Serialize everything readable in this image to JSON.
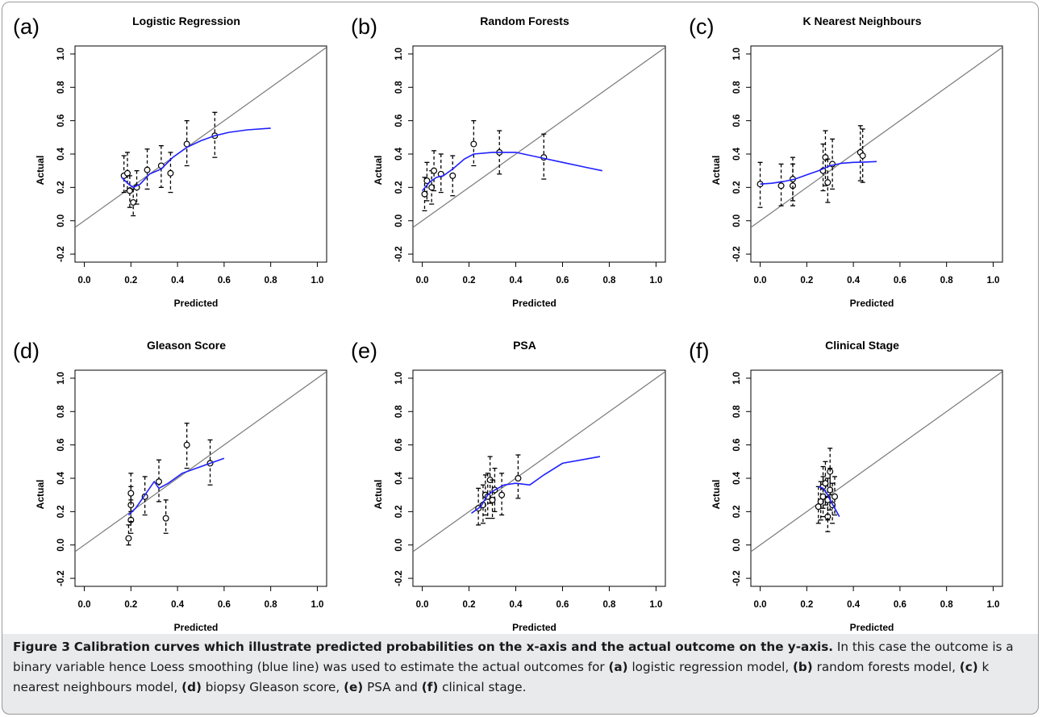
{
  "axis_label_x": "Predicted",
  "axis_label_y": "Actual",
  "x_ticks": [
    "0.0",
    "0.2",
    "0.4",
    "0.6",
    "0.8",
    "1.0"
  ],
  "y_ticks": [
    "-0.2",
    "0.0",
    "0.2",
    "0.4",
    "0.6",
    "0.8",
    "1.0"
  ],
  "colors": {
    "loess": "#1f1fff",
    "reference": "#7a7a7a",
    "points": "#000000",
    "caption_bg": "#e8eaec"
  },
  "chart_data": [
    {
      "panel": "(a)",
      "type": "scatter",
      "title": "Logistic Regression",
      "xlabel": "Predicted",
      "ylabel": "Actual",
      "xlim": [
        0,
        1
      ],
      "ylim": [
        -0.2,
        1
      ],
      "reference_line": {
        "intercept": 0,
        "slope": 1
      },
      "points": [
        {
          "x": 0.17,
          "y": 0.27,
          "lo": 0.17,
          "hi": 0.39
        },
        {
          "x": 0.185,
          "y": 0.285,
          "lo": 0.18,
          "hi": 0.41
        },
        {
          "x": 0.195,
          "y": 0.18,
          "lo": 0.08,
          "hi": 0.27
        },
        {
          "x": 0.21,
          "y": 0.11,
          "lo": 0.03,
          "hi": 0.19
        },
        {
          "x": 0.225,
          "y": 0.2,
          "lo": 0.1,
          "hi": 0.3
        },
        {
          "x": 0.27,
          "y": 0.305,
          "lo": 0.19,
          "hi": 0.43
        },
        {
          "x": 0.33,
          "y": 0.33,
          "lo": 0.2,
          "hi": 0.45
        },
        {
          "x": 0.37,
          "y": 0.285,
          "lo": 0.17,
          "hi": 0.41
        },
        {
          "x": 0.44,
          "y": 0.46,
          "lo": 0.33,
          "hi": 0.6
        },
        {
          "x": 0.56,
          "y": 0.51,
          "lo": 0.38,
          "hi": 0.65
        }
      ],
      "loess": [
        [
          0.16,
          0.26
        ],
        [
          0.19,
          0.22
        ],
        [
          0.21,
          0.2
        ],
        [
          0.24,
          0.22
        ],
        [
          0.28,
          0.28
        ],
        [
          0.33,
          0.31
        ],
        [
          0.38,
          0.38
        ],
        [
          0.44,
          0.44
        ],
        [
          0.5,
          0.48
        ],
        [
          0.56,
          0.51
        ],
        [
          0.62,
          0.53
        ],
        [
          0.7,
          0.545
        ],
        [
          0.8,
          0.555
        ]
      ]
    },
    {
      "panel": "(b)",
      "type": "scatter",
      "title": "Random Forests",
      "xlabel": "Predicted",
      "ylabel": "Actual",
      "xlim": [
        0,
        1
      ],
      "ylim": [
        -0.2,
        1
      ],
      "reference_line": {
        "intercept": 0,
        "slope": 1
      },
      "points": [
        {
          "x": 0.01,
          "y": 0.16,
          "lo": 0.06,
          "hi": 0.26
        },
        {
          "x": 0.02,
          "y": 0.24,
          "lo": 0.12,
          "hi": 0.35
        },
        {
          "x": 0.04,
          "y": 0.2,
          "lo": 0.1,
          "hi": 0.3
        },
        {
          "x": 0.05,
          "y": 0.3,
          "lo": 0.18,
          "hi": 0.42
        },
        {
          "x": 0.08,
          "y": 0.28,
          "lo": 0.17,
          "hi": 0.4
        },
        {
          "x": 0.13,
          "y": 0.27,
          "lo": 0.15,
          "hi": 0.39
        },
        {
          "x": 0.22,
          "y": 0.46,
          "lo": 0.33,
          "hi": 0.6
        },
        {
          "x": 0.33,
          "y": 0.41,
          "lo": 0.28,
          "hi": 0.54
        },
        {
          "x": 0.52,
          "y": 0.38,
          "lo": 0.25,
          "hi": 0.52
        }
      ],
      "loess": [
        [
          0.0,
          0.18
        ],
        [
          0.03,
          0.23
        ],
        [
          0.06,
          0.26
        ],
        [
          0.09,
          0.27
        ],
        [
          0.13,
          0.31
        ],
        [
          0.18,
          0.37
        ],
        [
          0.22,
          0.4
        ],
        [
          0.3,
          0.41
        ],
        [
          0.4,
          0.41
        ],
        [
          0.5,
          0.38
        ],
        [
          0.6,
          0.35
        ],
        [
          0.7,
          0.32
        ],
        [
          0.77,
          0.3
        ]
      ]
    },
    {
      "panel": "(c)",
      "type": "scatter",
      "title": "K Nearest Neighbours",
      "xlabel": "Predicted",
      "ylabel": "Actual",
      "xlim": [
        0,
        1
      ],
      "ylim": [
        -0.2,
        1
      ],
      "reference_line": {
        "intercept": 0,
        "slope": 1
      },
      "points": [
        {
          "x": 0.0,
          "y": 0.22,
          "lo": 0.08,
          "hi": 0.35
        },
        {
          "x": 0.09,
          "y": 0.21,
          "lo": 0.09,
          "hi": 0.34
        },
        {
          "x": 0.14,
          "y": 0.21,
          "lo": 0.09,
          "hi": 0.34
        },
        {
          "x": 0.14,
          "y": 0.25,
          "lo": 0.12,
          "hi": 0.38
        },
        {
          "x": 0.27,
          "y": 0.3,
          "lo": 0.18,
          "hi": 0.46
        },
        {
          "x": 0.28,
          "y": 0.38,
          "lo": 0.21,
          "hi": 0.54
        },
        {
          "x": 0.29,
          "y": 0.23,
          "lo": 0.11,
          "hi": 0.37
        },
        {
          "x": 0.31,
          "y": 0.34,
          "lo": 0.19,
          "hi": 0.49
        },
        {
          "x": 0.43,
          "y": 0.41,
          "lo": 0.24,
          "hi": 0.57
        },
        {
          "x": 0.44,
          "y": 0.39,
          "lo": 0.23,
          "hi": 0.55
        }
      ],
      "loess": [
        [
          0.0,
          0.22
        ],
        [
          0.05,
          0.225
        ],
        [
          0.1,
          0.235
        ],
        [
          0.15,
          0.25
        ],
        [
          0.2,
          0.275
        ],
        [
          0.25,
          0.3
        ],
        [
          0.3,
          0.33
        ],
        [
          0.35,
          0.345
        ],
        [
          0.4,
          0.35
        ],
        [
          0.45,
          0.352
        ],
        [
          0.5,
          0.355
        ]
      ]
    },
    {
      "panel": "(d)",
      "type": "scatter",
      "title": "Gleason Score",
      "xlabel": "Predicted",
      "ylabel": "Actual",
      "xlim": [
        0,
        1
      ],
      "ylim": [
        -0.2,
        1
      ],
      "reference_line": {
        "intercept": 0,
        "slope": 1
      },
      "points": [
        {
          "x": 0.19,
          "y": 0.04,
          "lo": 0.0,
          "hi": 0.12
        },
        {
          "x": 0.2,
          "y": 0.15,
          "lo": 0.07,
          "hi": 0.27
        },
        {
          "x": 0.2,
          "y": 0.24,
          "lo": 0.14,
          "hi": 0.35
        },
        {
          "x": 0.2,
          "y": 0.31,
          "lo": 0.2,
          "hi": 0.43
        },
        {
          "x": 0.26,
          "y": 0.29,
          "lo": 0.18,
          "hi": 0.41
        },
        {
          "x": 0.32,
          "y": 0.38,
          "lo": 0.26,
          "hi": 0.51
        },
        {
          "x": 0.35,
          "y": 0.16,
          "lo": 0.07,
          "hi": 0.27
        },
        {
          "x": 0.44,
          "y": 0.6,
          "lo": 0.46,
          "hi": 0.73
        },
        {
          "x": 0.54,
          "y": 0.49,
          "lo": 0.36,
          "hi": 0.63
        }
      ],
      "loess": [
        [
          0.19,
          0.18
        ],
        [
          0.22,
          0.22
        ],
        [
          0.26,
          0.3
        ],
        [
          0.3,
          0.38
        ],
        [
          0.32,
          0.34
        ],
        [
          0.36,
          0.37
        ],
        [
          0.42,
          0.43
        ],
        [
          0.48,
          0.46
        ],
        [
          0.54,
          0.49
        ],
        [
          0.6,
          0.52
        ]
      ]
    },
    {
      "panel": "(e)",
      "type": "scatter",
      "title": "PSA",
      "xlabel": "Predicted",
      "ylabel": "Actual",
      "xlim": [
        0,
        1
      ],
      "ylim": [
        -0.2,
        1
      ],
      "reference_line": {
        "intercept": 0,
        "slope": 1
      },
      "points": [
        {
          "x": 0.24,
          "y": 0.22,
          "lo": 0.12,
          "hi": 0.34
        },
        {
          "x": 0.26,
          "y": 0.24,
          "lo": 0.13,
          "hi": 0.36
        },
        {
          "x": 0.27,
          "y": 0.3,
          "lo": 0.18,
          "hi": 0.42
        },
        {
          "x": 0.28,
          "y": 0.29,
          "lo": 0.16,
          "hi": 0.43
        },
        {
          "x": 0.29,
          "y": 0.39,
          "lo": 0.25,
          "hi": 0.53
        },
        {
          "x": 0.3,
          "y": 0.27,
          "lo": 0.16,
          "hi": 0.39
        },
        {
          "x": 0.31,
          "y": 0.33,
          "lo": 0.2,
          "hi": 0.46
        },
        {
          "x": 0.34,
          "y": 0.3,
          "lo": 0.18,
          "hi": 0.43
        },
        {
          "x": 0.41,
          "y": 0.4,
          "lo": 0.28,
          "hi": 0.54
        }
      ],
      "loess": [
        [
          0.21,
          0.19
        ],
        [
          0.25,
          0.23
        ],
        [
          0.28,
          0.3
        ],
        [
          0.31,
          0.33
        ],
        [
          0.35,
          0.36
        ],
        [
          0.4,
          0.37
        ],
        [
          0.46,
          0.36
        ],
        [
          0.52,
          0.42
        ],
        [
          0.6,
          0.49
        ],
        [
          0.7,
          0.515
        ],
        [
          0.76,
          0.53
        ]
      ]
    },
    {
      "panel": "(f)",
      "type": "scatter",
      "title": "Clinical Stage",
      "xlabel": "Predicted",
      "ylabel": "Actual",
      "xlim": [
        0,
        1
      ],
      "ylim": [
        -0.2,
        1
      ],
      "reference_line": {
        "intercept": 0,
        "slope": 1
      },
      "points": [
        {
          "x": 0.25,
          "y": 0.23,
          "lo": 0.13,
          "hi": 0.35
        },
        {
          "x": 0.26,
          "y": 0.26,
          "lo": 0.15,
          "hi": 0.38
        },
        {
          "x": 0.27,
          "y": 0.35,
          "lo": 0.22,
          "hi": 0.47
        },
        {
          "x": 0.27,
          "y": 0.29,
          "lo": 0.17,
          "hi": 0.41
        },
        {
          "x": 0.28,
          "y": 0.37,
          "lo": 0.24,
          "hi": 0.5
        },
        {
          "x": 0.29,
          "y": 0.17,
          "lo": 0.08,
          "hi": 0.29
        },
        {
          "x": 0.29,
          "y": 0.27,
          "lo": 0.15,
          "hi": 0.4
        },
        {
          "x": 0.3,
          "y": 0.44,
          "lo": 0.3,
          "hi": 0.58
        },
        {
          "x": 0.3,
          "y": 0.33,
          "lo": 0.21,
          "hi": 0.46
        },
        {
          "x": 0.31,
          "y": 0.24,
          "lo": 0.13,
          "hi": 0.37
        },
        {
          "x": 0.32,
          "y": 0.29,
          "lo": 0.18,
          "hi": 0.41
        }
      ],
      "loess": [
        [
          0.25,
          0.35
        ],
        [
          0.27,
          0.34
        ],
        [
          0.29,
          0.3
        ],
        [
          0.3,
          0.27
        ],
        [
          0.32,
          0.22
        ],
        [
          0.34,
          0.17
        ]
      ]
    }
  ],
  "caption": {
    "label": "Figure 3",
    "title": "Calibration curves which illustrate predicted probabilities on the x-axis and the actual outcome on the y-axis.",
    "text1": "In this case the outcome is a binary variable hence Loess smoothing (blue line) was used to estimate the actual outcomes for",
    "a": "(a)",
    "ta": "logistic regression model,",
    "b": "(b)",
    "tb": "random forests model,",
    "c": "(c)",
    "tc": "k nearest neighbours model,",
    "d": "(d)",
    "td": "biopsy Gleason score,",
    "e": "(e)",
    "te": "PSA and",
    "f": "(f)",
    "tf": "clinical stage."
  }
}
